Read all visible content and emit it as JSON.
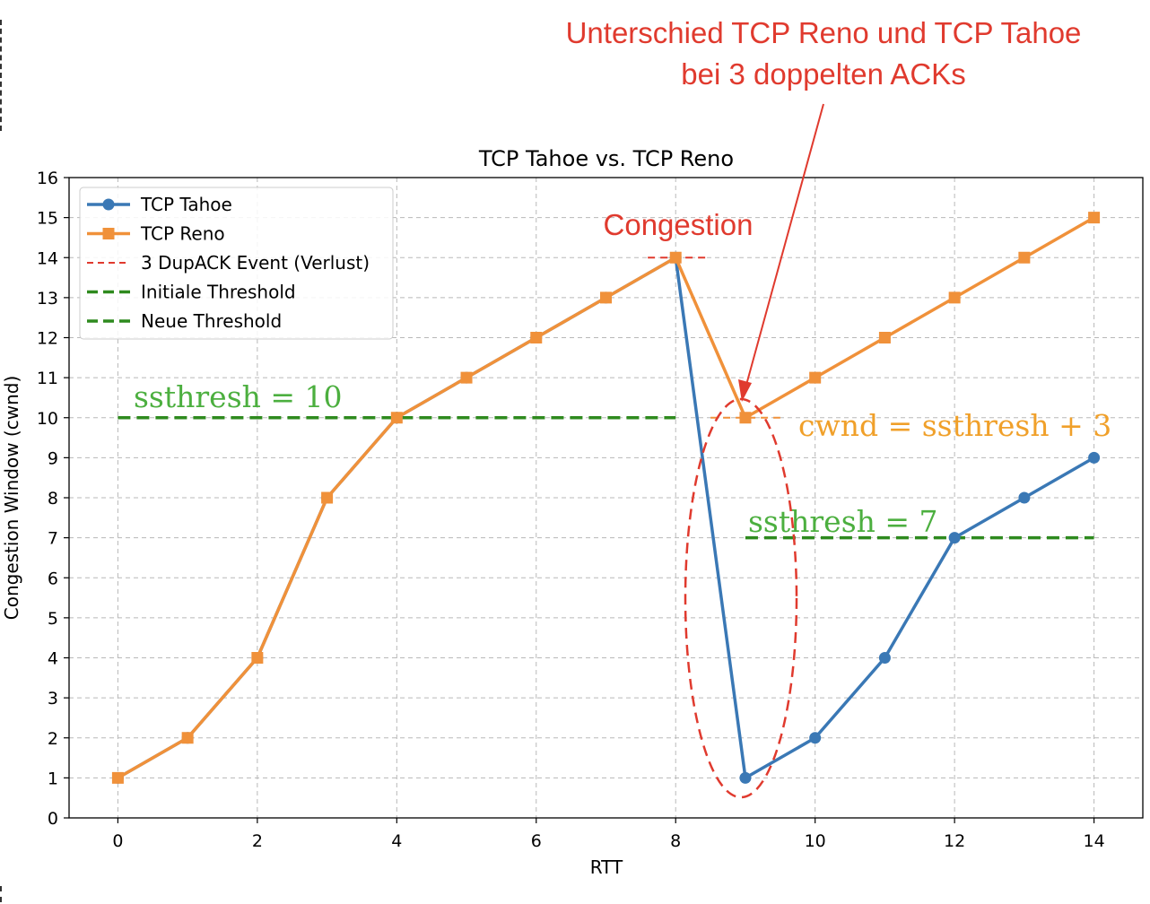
{
  "chart_data": {
    "type": "line",
    "title": "TCP Tahoe vs. TCP Reno",
    "xlabel": "RTT",
    "ylabel": "Congestion Window (cwnd)",
    "xlim": [
      -0.7,
      14.7
    ],
    "ylim": [
      0,
      16
    ],
    "x_ticks": [
      0,
      2,
      4,
      6,
      8,
      10,
      12,
      14
    ],
    "y_ticks": [
      0,
      1,
      2,
      3,
      4,
      5,
      6,
      7,
      8,
      9,
      10,
      11,
      12,
      13,
      14,
      15,
      16
    ],
    "grid": true,
    "legend_position": "top-left",
    "series": [
      {
        "name": "TCP Tahoe",
        "color": "#3a78b5",
        "marker": "circle",
        "x": [
          0,
          1,
          2,
          3,
          4,
          5,
          6,
          7,
          8,
          9,
          10,
          11,
          12,
          13,
          14
        ],
        "y": [
          1,
          2,
          4,
          8,
          10,
          11,
          12,
          13,
          14,
          1,
          2,
          4,
          7,
          8,
          9
        ]
      },
      {
        "name": "TCP Reno",
        "color": "#f0913a",
        "marker": "square",
        "x": [
          0,
          1,
          2,
          3,
          4,
          5,
          6,
          7,
          8,
          9,
          10,
          11,
          12,
          13,
          14
        ],
        "y": [
          1,
          2,
          4,
          8,
          10,
          11,
          12,
          13,
          14,
          10,
          11,
          12,
          13,
          14,
          15
        ]
      }
    ],
    "reference_lines": [
      {
        "name": "3 DupACK Event (Verlust)",
        "color": "#e03a2e",
        "style": "dashed",
        "y": 14,
        "x_range": [
          7.6,
          8.5
        ]
      },
      {
        "name": "Initiale Threshold",
        "color": "#2e8a1e",
        "style": "dashed",
        "y": 10,
        "x_range": [
          0,
          8
        ]
      },
      {
        "name": "Initiale Threshold",
        "color": "#f0913a",
        "style": "dashed",
        "y": 10,
        "x_range": [
          8.5,
          9.5
        ]
      },
      {
        "name": "Neue Threshold",
        "color": "#2e8a1e",
        "style": "dashed",
        "y": 7,
        "x_range": [
          9,
          14
        ]
      }
    ],
    "legend": [
      {
        "label": "TCP Tahoe",
        "kind": "line-circle",
        "color": "#3a78b5"
      },
      {
        "label": "TCP Reno",
        "kind": "line-square",
        "color": "#f0913a"
      },
      {
        "label": "3 DupACK Event (Verlust)",
        "kind": "dashed",
        "color": "#e03a2e"
      },
      {
        "label": "Initiale Threshold",
        "kind": "dashed-thick",
        "color": "#2e8a1e"
      },
      {
        "label": "Neue Threshold",
        "kind": "dashed-thick",
        "color": "#2e8a1e"
      }
    ],
    "annotations": {
      "headline_line1": "Unterschied TCP Reno und TCP Tahoe",
      "headline_line2": "bei 3 doppelten ACKs",
      "congestion": "Congestion",
      "ssthresh_initial": "ssthresh = 10",
      "ssthresh_new": "ssthresh = 7",
      "reno_cwnd": "cwnd = ssthresh + 3",
      "red_color": "#e03a2e",
      "green_color": "#4caf3f",
      "orange_color": "#f0a02a"
    }
  }
}
